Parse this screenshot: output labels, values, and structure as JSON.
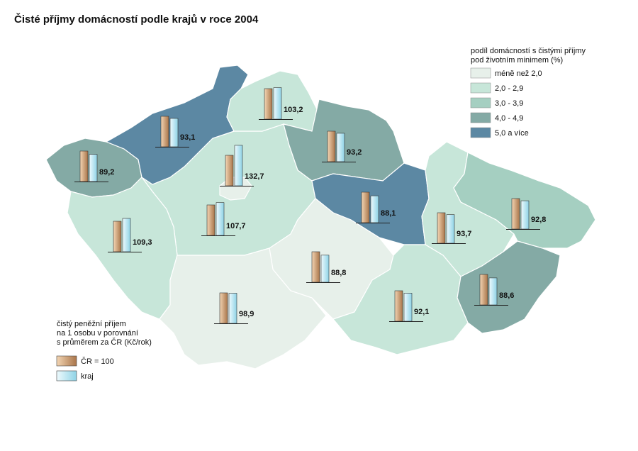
{
  "header": {
    "title": "Čisté příjmy domácností podle krajů v roce 2004"
  },
  "legend_classes": {
    "title_lines": [
      "podíl domácností s čistými příjmy",
      "pod životním minimem (%)"
    ],
    "items": [
      {
        "label": "méně než 2,0",
        "color": "#e7f0ea"
      },
      {
        "label": "2,0 - 2,9",
        "color": "#c7e6d9"
      },
      {
        "label": "3,0 - 3,9",
        "color": "#a5cfc1"
      },
      {
        "label": "4,0 - 4,9",
        "color": "#84aaa5"
      },
      {
        "label": "5,0 a více",
        "color": "#5c88a3"
      }
    ]
  },
  "legend_bars": {
    "title_lines": [
      "čistý peněžní příjem",
      "na 1 osobu v porovnání",
      "s průměrem za ČR (Kč/rok)"
    ],
    "reference": {
      "value": 100,
      "label": "ČR = 100"
    },
    "region_label": "kraj"
  },
  "regions": [
    {
      "value": 89.2,
      "label": "89,2",
      "class": 3
    },
    {
      "value": 93.1,
      "label": "93,1",
      "class": 4
    },
    {
      "value": 103.2,
      "label": "103,2",
      "class": 1
    },
    {
      "value": 93.2,
      "label": "93,2",
      "class": 3
    },
    {
      "value": 132.7,
      "label": "132,7",
      "class": 0
    },
    {
      "value": 107.7,
      "label": "107,7",
      "class": 1
    },
    {
      "value": 109.3,
      "label": "109,3",
      "class": 1
    },
    {
      "value": 88.1,
      "label": "88,1",
      "class": 4
    },
    {
      "value": 93.7,
      "label": "93,7",
      "class": 1
    },
    {
      "value": 92.8,
      "label": "92,8",
      "class": 2
    },
    {
      "value": 88.8,
      "label": "88,8",
      "class": 0
    },
    {
      "value": 98.9,
      "label": "98,9",
      "class": 0
    },
    {
      "value": 92.1,
      "label": "92,1",
      "class": 1
    },
    {
      "value": 88.6,
      "label": "88,6",
      "class": 3
    }
  ]
}
